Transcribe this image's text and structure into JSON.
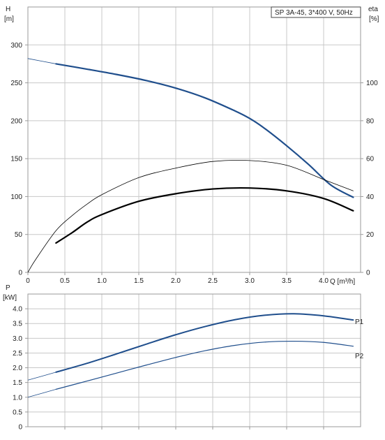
{
  "colors": {
    "grid": "#c8c8c8",
    "frame": "#9a9a9a",
    "head_curve": "#1f4e8c",
    "eff_curve": "#000000",
    "power_curve": "#1f4e8c",
    "axis_text": "#222222"
  },
  "chart_data": [
    {
      "type": "line",
      "title": "SP 3A-45, 3*400 V, 50Hz",
      "ylabel_left": "H",
      "ylabel_left_unit": "[m]",
      "ylabel_right": "eta",
      "ylabel_right_unit": "[%]",
      "xlabel": "Q [m³/h]",
      "xlim": [
        0,
        4.5
      ],
      "ylim_left": [
        0,
        350
      ],
      "ylim_right": [
        0,
        140
      ],
      "x_ticks": [
        "0",
        "0.5",
        "1.0",
        "1.5",
        "2.0",
        "2.5",
        "3.0",
        "3.5",
        "4.0"
      ],
      "x_tick_values": [
        0,
        0.5,
        1.0,
        1.5,
        2.0,
        2.5,
        3.0,
        3.5,
        4.0
      ],
      "y_ticks_left": [
        "0",
        "50",
        "100",
        "150",
        "200",
        "250",
        "300"
      ],
      "y_tick_values_left": [
        0,
        50,
        100,
        150,
        200,
        250,
        300
      ],
      "y_ticks_right": [
        "0",
        "20",
        "40",
        "60",
        "80",
        "100"
      ],
      "y_tick_values_right": [
        0,
        20,
        40,
        60,
        80,
        100
      ],
      "grid": true,
      "series": [
        {
          "axis": "left",
          "x": [
            0,
            0.38
          ],
          "y": [
            282,
            275
          ]
        },
        {
          "axis": "left",
          "x": [
            0.38,
            0.8,
            1.2,
            1.6,
            2.0,
            2.4,
            2.8,
            3.0,
            3.2,
            3.5,
            3.8,
            4.1,
            4.4
          ],
          "y": [
            275,
            268,
            261,
            253,
            243,
            230,
            213,
            203,
            190,
            167,
            142,
            115,
            99
          ]
        },
        {
          "axis": "right",
          "x": [
            0,
            0.1,
            0.38,
            0.6,
            0.8,
            1.0,
            1.5,
            2.0,
            2.5,
            3.0,
            3.5,
            4.0,
            4.4
          ],
          "y": [
            0,
            6.5,
            22,
            30,
            36,
            41,
            50,
            55,
            58.5,
            59,
            56.5,
            49,
            43
          ]
        },
        {
          "axis": "right",
          "x": [
            0.38,
            0.6,
            0.8,
            1.0,
            1.5,
            2.0,
            2.5,
            3.0,
            3.5,
            4.0,
            4.4
          ],
          "y": [
            15.5,
            21,
            26.5,
            30.5,
            37.5,
            41.5,
            44,
            44.5,
            43,
            39,
            32.5
          ]
        }
      ]
    },
    {
      "type": "line",
      "ylabel": "P",
      "ylabel_unit": "[kW]",
      "xlim": [
        0,
        4.5
      ],
      "ylim": [
        0,
        4.5
      ],
      "y_ticks": [
        "0",
        "0.5",
        "1.0",
        "1.5",
        "2.0",
        "2.5",
        "3.0",
        "3.5",
        "4.0"
      ],
      "y_tick_values": [
        0,
        0.5,
        1.0,
        1.5,
        2.0,
        2.5,
        3.0,
        3.5,
        4.0
      ],
      "grid": true,
      "series": [
        {
          "name": "P1",
          "x": [
            0,
            0.38,
            0.8,
            1.2,
            1.6,
            2.0,
            2.4,
            2.8,
            3.2,
            3.6,
            4.0,
            4.4
          ],
          "y": [
            1.58,
            1.85,
            2.15,
            2.47,
            2.8,
            3.12,
            3.4,
            3.63,
            3.78,
            3.83,
            3.76,
            3.62
          ]
        },
        {
          "name": "P2",
          "x": [
            0,
            0.38,
            0.8,
            1.2,
            1.6,
            2.0,
            2.4,
            2.8,
            3.2,
            3.6,
            4.0,
            4.4
          ],
          "y": [
            1.0,
            1.27,
            1.55,
            1.82,
            2.09,
            2.35,
            2.58,
            2.76,
            2.87,
            2.9,
            2.86,
            2.73
          ]
        }
      ]
    }
  ]
}
